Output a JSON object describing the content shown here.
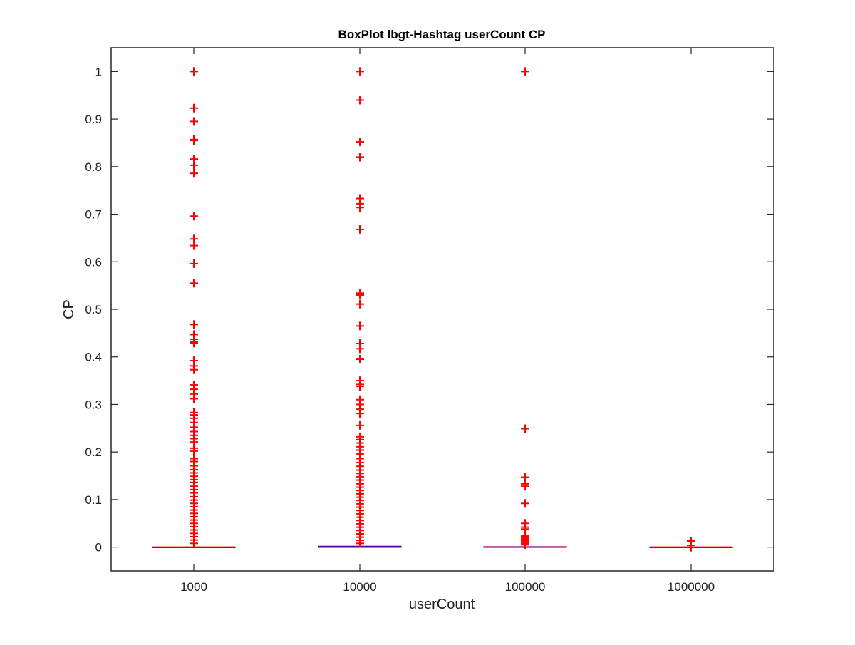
{
  "colors": {
    "outlier": "#ff0000",
    "median": "#ff0000",
    "box": "#0000ff",
    "axis": "#262626",
    "background": "#ffffff"
  },
  "chart_data": {
    "type": "boxplot",
    "title": "BoxPlot lbgt-Hashtag userCount CP",
    "xlabel": "userCount",
    "ylabel": "CP",
    "ylim": [
      -0.05,
      1.05
    ],
    "yticks": [
      0,
      0.1,
      0.2,
      0.3,
      0.4,
      0.5,
      0.6,
      0.7,
      0.8,
      0.9,
      1
    ],
    "ytick_labels": [
      "0",
      "0.1",
      "0.2",
      "0.3",
      "0.4",
      "0.5",
      "0.6",
      "0.7",
      "0.8",
      "0.9",
      "1"
    ],
    "categories": [
      "1000",
      "10000",
      "100000",
      "1000000"
    ],
    "grid": false,
    "boxes": [
      {
        "category": "1000",
        "q1": 0,
        "median": 0,
        "q3": 0,
        "whisker_low": 0,
        "whisker_high": 0,
        "outliers": [
          1.0,
          0.923,
          0.895,
          0.857,
          0.855,
          0.816,
          0.803,
          0.786,
          0.696,
          0.648,
          0.634,
          0.596,
          0.555,
          0.468,
          0.447,
          0.437,
          0.431,
          0.429,
          0.392,
          0.381,
          0.373,
          0.341,
          0.332,
          0.322,
          0.312,
          0.283,
          0.278,
          0.271,
          0.262,
          0.252,
          0.243,
          0.235,
          0.228,
          0.221,
          0.208,
          0.202,
          0.186,
          0.18,
          0.171,
          0.163,
          0.156,
          0.149,
          0.142,
          0.136,
          0.128,
          0.121,
          0.114,
          0.106,
          0.099,
          0.092,
          0.085,
          0.078,
          0.071,
          0.064,
          0.057,
          0.05,
          0.043,
          0.036,
          0.029,
          0.022,
          0.015,
          0.008
        ]
      },
      {
        "category": "10000",
        "q1": 0,
        "median": 0,
        "q3": 0.002,
        "whisker_low": 0,
        "whisker_high": 0.004,
        "outliers": [
          1.0,
          0.94,
          0.852,
          0.82,
          0.733,
          0.722,
          0.714,
          0.668,
          0.534,
          0.53,
          0.511,
          0.465,
          0.428,
          0.417,
          0.395,
          0.35,
          0.342,
          0.338,
          0.31,
          0.3,
          0.29,
          0.281,
          0.256,
          0.232,
          0.226,
          0.219,
          0.211,
          0.204,
          0.196,
          0.186,
          0.178,
          0.17,
          0.162,
          0.155,
          0.148,
          0.141,
          0.133,
          0.126,
          0.119,
          0.112,
          0.105,
          0.098,
          0.091,
          0.084,
          0.077,
          0.07,
          0.063,
          0.056,
          0.049,
          0.042,
          0.035,
          0.028,
          0.021,
          0.014,
          0.008
        ]
      },
      {
        "category": "100000",
        "q1": 0,
        "median": 0,
        "q3": 0.001,
        "whisker_low": 0,
        "whisker_high": 0.003,
        "outliers": [
          1.0,
          0.249,
          0.147,
          0.133,
          0.128,
          0.092,
          0.05,
          0.042,
          0.038,
          0.025,
          0.022,
          0.019,
          0.016,
          0.013,
          0.01,
          0.007,
          0.005
        ]
      },
      {
        "category": "1000000",
        "q1": 0,
        "median": 0,
        "q3": 0,
        "whisker_low": 0,
        "whisker_high": 0,
        "outliers": [
          0.013,
          0.004,
          0.0
        ]
      }
    ]
  }
}
